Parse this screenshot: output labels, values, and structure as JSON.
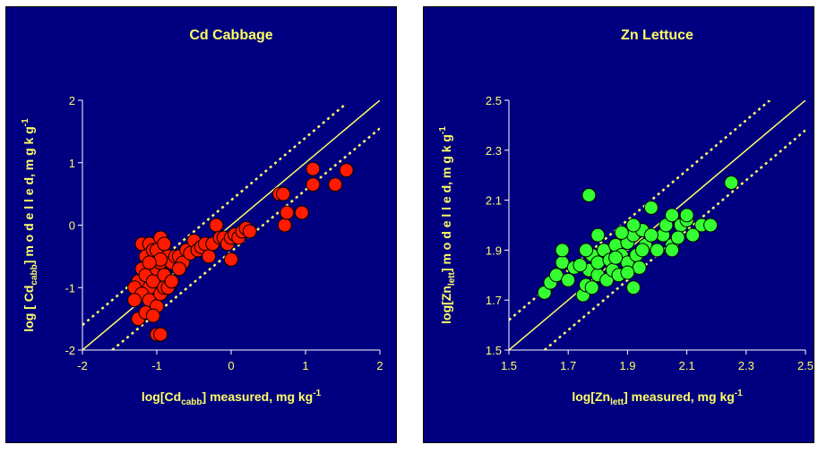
{
  "colors": {
    "background": "#000080",
    "text": "#ffff66",
    "axis": "#ffffff",
    "line": "#ffff66"
  },
  "chart_data": [
    {
      "type": "scatter",
      "title": "Cd Cabbage",
      "xlabel": {
        "pre": "log[Cd",
        "sub": "cabb",
        "post": "] measured, mg kg",
        "sup": "-1"
      },
      "ylabel": {
        "pre": "log [ Cd",
        "sub": "cabb",
        "post": "] m o d e l l e d,  m g  k g",
        "sup": "-1"
      },
      "xlim": [
        -2,
        2
      ],
      "ylim": [
        -2,
        2
      ],
      "xticks": [
        "-2",
        "-1",
        "0",
        "1",
        "2"
      ],
      "yticks": [
        "2",
        "1",
        "0",
        "-1",
        "-2"
      ],
      "point_color": "#ff1a00",
      "lines": [
        {
          "style": "solid",
          "x": [
            -2,
            2
          ],
          "y": [
            -2,
            2
          ]
        },
        {
          "style": "dotted",
          "x": [
            -2,
            1.55
          ],
          "y": [
            -1.6,
            1.95
          ]
        },
        {
          "style": "dotted",
          "x": [
            -1.6,
            2
          ],
          "y": [
            -2,
            1.55
          ]
        }
      ],
      "points": [
        [
          -1.2,
          -0.3
        ],
        [
          -1.15,
          -0.5
        ],
        [
          -1.1,
          -0.3
        ],
        [
          -1.05,
          -0.4
        ],
        [
          -1.0,
          -0.4
        ],
        [
          -0.95,
          -0.2
        ],
        [
          -1.25,
          -0.9
        ],
        [
          -1.3,
          -1.0
        ],
        [
          -1.2,
          -0.7
        ],
        [
          -1.15,
          -0.8
        ],
        [
          -1.1,
          -1.0
        ],
        [
          -1.05,
          -0.9
        ],
        [
          -1.0,
          -0.7
        ],
        [
          -0.95,
          -0.6
        ],
        [
          -0.9,
          -0.8
        ],
        [
          -0.85,
          -0.5
        ],
        [
          -1.2,
          -1.1
        ],
        [
          -1.1,
          -1.2
        ],
        [
          -1.0,
          -1.3
        ],
        [
          -0.95,
          -1.1
        ],
        [
          -1.25,
          -1.5
        ],
        [
          -1.15,
          -1.4
        ],
        [
          -1.05,
          -1.45
        ],
        [
          -1.0,
          -1.75
        ],
        [
          -0.95,
          -1.75
        ],
        [
          -1.3,
          -1.2
        ],
        [
          -0.9,
          -1.0
        ],
        [
          -0.85,
          -1.0
        ],
        [
          -0.8,
          -0.9
        ],
        [
          -0.8,
          -0.6
        ],
        [
          -0.75,
          -0.5
        ],
        [
          -0.7,
          -0.5
        ],
        [
          -0.65,
          -0.6
        ],
        [
          -0.6,
          -0.4
        ],
        [
          -0.55,
          -0.45
        ],
        [
          -0.5,
          -0.25
        ],
        [
          -0.45,
          -0.4
        ],
        [
          -0.4,
          -0.35
        ],
        [
          -0.35,
          -0.3
        ],
        [
          -0.3,
          -0.5
        ],
        [
          -0.25,
          -0.3
        ],
        [
          -0.2,
          0.0
        ],
        [
          -0.15,
          -0.2
        ],
        [
          -0.1,
          -0.2
        ],
        [
          -0.05,
          -0.3
        ],
        [
          0.0,
          -0.2
        ],
        [
          0.05,
          -0.15
        ],
        [
          0.1,
          -0.2
        ],
        [
          0.15,
          -0.1
        ],
        [
          0.2,
          -0.05
        ],
        [
          0.25,
          -0.1
        ],
        [
          0.0,
          -0.55
        ],
        [
          -0.95,
          -0.55
        ],
        [
          -1.1,
          -0.6
        ],
        [
          -0.9,
          -0.3
        ],
        [
          -0.7,
          -0.7
        ],
        [
          0.65,
          0.5
        ],
        [
          0.7,
          0.5
        ],
        [
          0.72,
          0.0
        ],
        [
          0.75,
          0.2
        ],
        [
          0.95,
          0.2
        ],
        [
          1.1,
          0.9
        ],
        [
          1.1,
          0.65
        ],
        [
          1.4,
          0.65
        ],
        [
          1.55,
          0.88
        ]
      ]
    },
    {
      "type": "scatter",
      "title": "Zn Lettuce",
      "xlabel": {
        "pre": "log[Zn",
        "sub": "lett",
        "post": "] measured, mg kg",
        "sup": "-1"
      },
      "ylabel": {
        "pre": "log[Zn",
        "sub": "lett",
        "post": "] m o d e l l e d,  m g  k g",
        "sup": "-1"
      },
      "xlim": [
        1.5,
        2.5
      ],
      "ylim": [
        1.5,
        2.5
      ],
      "xticks": [
        "1.5",
        "1.7",
        "1.9",
        "2.1",
        "2.3",
        "2.5"
      ],
      "yticks": [
        "2.5",
        "2.3",
        "2.1",
        "1.9",
        "1.7",
        "1.5"
      ],
      "point_color": "#33ff33",
      "lines": [
        {
          "style": "solid",
          "x": [
            1.5,
            2.5
          ],
          "y": [
            1.5,
            2.5
          ]
        },
        {
          "style": "dotted",
          "x": [
            1.5,
            2.38
          ],
          "y": [
            1.62,
            2.5
          ]
        },
        {
          "style": "dotted",
          "x": [
            1.62,
            2.5
          ],
          "y": [
            1.5,
            2.38
          ]
        }
      ],
      "points": [
        [
          1.62,
          1.73
        ],
        [
          1.64,
          1.77
        ],
        [
          1.66,
          1.8
        ],
        [
          1.68,
          1.85
        ],
        [
          1.68,
          1.9
        ],
        [
          1.7,
          1.78
        ],
        [
          1.72,
          1.83
        ],
        [
          1.75,
          1.72
        ],
        [
          1.76,
          1.76
        ],
        [
          1.77,
          1.82
        ],
        [
          1.78,
          1.88
        ],
        [
          1.8,
          1.8
        ],
        [
          1.8,
          1.85
        ],
        [
          1.82,
          1.9
        ],
        [
          1.83,
          1.78
        ],
        [
          1.84,
          1.86
        ],
        [
          1.85,
          1.82
        ],
        [
          1.86,
          1.92
        ],
        [
          1.87,
          1.8
        ],
        [
          1.88,
          1.88
        ],
        [
          1.9,
          1.85
        ],
        [
          1.9,
          1.93
        ],
        [
          1.92,
          1.96
        ],
        [
          1.92,
          1.75
        ],
        [
          1.93,
          1.88
        ],
        [
          1.94,
          1.83
        ],
        [
          1.95,
          1.98
        ],
        [
          1.96,
          1.92
        ],
        [
          1.98,
          2.07
        ],
        [
          2.0,
          1.9
        ],
        [
          2.02,
          1.96
        ],
        [
          2.03,
          2.0
        ],
        [
          2.05,
          2.04
        ],
        [
          2.05,
          1.92
        ],
        [
          2.08,
          2.0
        ],
        [
          2.1,
          2.02
        ],
        [
          2.12,
          1.96
        ],
        [
          2.15,
          2.0
        ],
        [
          2.05,
          1.9
        ],
        [
          2.07,
          1.95
        ],
        [
          1.76,
          1.9
        ],
        [
          1.8,
          1.96
        ],
        [
          1.88,
          1.97
        ],
        [
          1.92,
          2.0
        ],
        [
          1.78,
          1.75
        ],
        [
          1.95,
          1.9
        ],
        [
          1.77,
          2.12
        ],
        [
          2.25,
          2.17
        ],
        [
          2.18,
          2.0
        ],
        [
          1.74,
          1.84
        ],
        [
          1.86,
          1.87
        ],
        [
          1.9,
          1.81
        ],
        [
          1.98,
          1.96
        ],
        [
          2.1,
          2.04
        ]
      ]
    }
  ]
}
